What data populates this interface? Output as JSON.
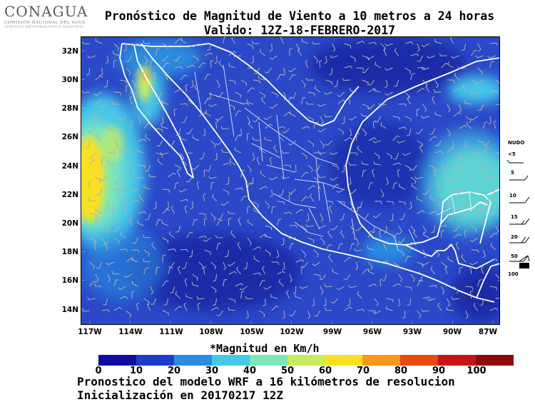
{
  "header": {
    "logo": {
      "name": "CONAGUA",
      "line1": "COMISIÓN NACIONAL DEL AGUA",
      "line2": "SERVICIO METEOROLÓGICO NACIONAL"
    },
    "title": "Pronóstico de Magnitud de Viento a 10 metros a 24 horas",
    "subtitle": "Valido: 12Z-18-FEBRERO-2017"
  },
  "map": {
    "lat_labels": [
      "32N",
      "30N",
      "28N",
      "26N",
      "24N",
      "22N",
      "20N",
      "18N",
      "16N",
      "14N"
    ],
    "lon_labels": [
      "117W",
      "114W",
      "111W",
      "108W",
      "105W",
      "102W",
      "99W",
      "96W",
      "93W",
      "90W",
      "87W"
    ],
    "background_color": "#2a48c8",
    "boundary_color": "#ffffff",
    "barb_color": "#b0b0b0"
  },
  "barb_key": {
    "title": "NUDO",
    "labels": [
      "<5",
      "5",
      "10",
      "15",
      "20",
      "50",
      "100"
    ]
  },
  "colorbar": {
    "title": "*Magnitud en Km/h",
    "labels": [
      "0",
      "10",
      "20",
      "30",
      "40",
      "50",
      "60",
      "70",
      "80",
      "90",
      "100"
    ],
    "colors": [
      "#0e0e9e",
      "#1e3ccc",
      "#2a8ce0",
      "#44c8e8",
      "#7fe6b6",
      "#c8ec5a",
      "#fae020",
      "#f89818",
      "#e84a10",
      "#c81414",
      "#8e0a0a"
    ]
  },
  "footer": {
    "line1": "Pronostico del modelo WRF a 16 kilómetros de resolucion",
    "line2": "Inicialización en 20170217 12Z"
  }
}
